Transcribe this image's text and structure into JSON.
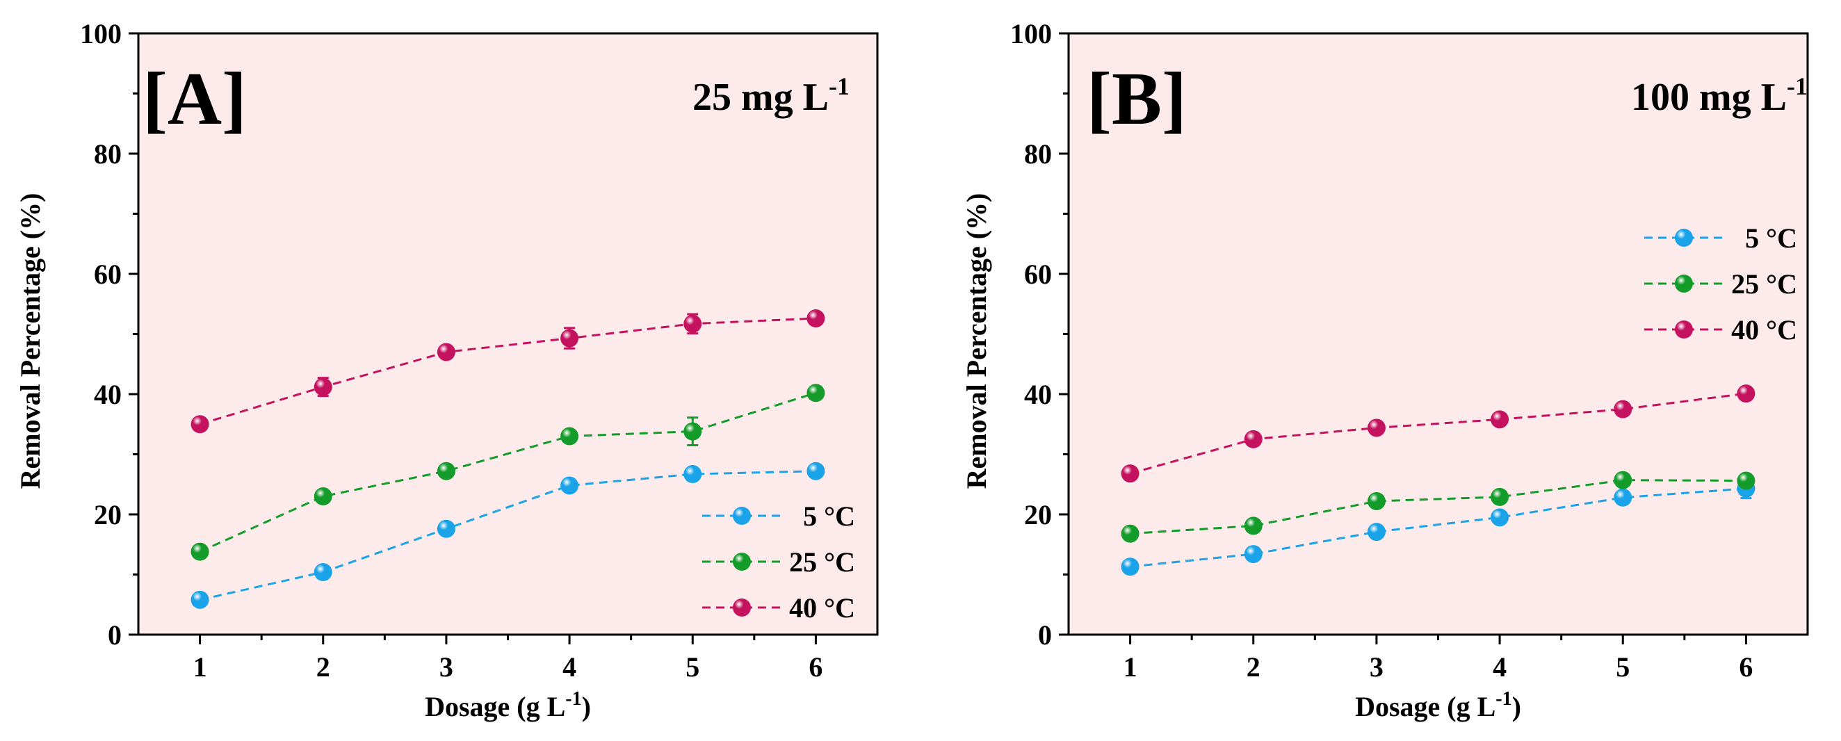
{
  "chart_data": [
    {
      "type": "line",
      "panel_label": "[A]",
      "concentration": {
        "main": "25 mg L",
        "sup": "-1"
      },
      "xlabel": {
        "main": "Dosage (g L",
        "sup": "-1",
        "tail": ")"
      },
      "ylabel": "Removal Percentage (%)",
      "x": [
        1,
        2,
        3,
        4,
        5,
        6
      ],
      "xlim": [
        0.5,
        6.5
      ],
      "ylim": [
        0,
        100
      ],
      "xticks": [
        "1",
        "2",
        "3",
        "4",
        "5",
        "6"
      ],
      "yticks": [
        "0",
        "20",
        "40",
        "60",
        "80",
        "100"
      ],
      "legend_position": "bottom-right",
      "series": [
        {
          "name": "5 °C",
          "color": "#1aa3e8",
          "values": [
            5.8,
            10.4,
            17.6,
            24.8,
            26.7,
            27.2
          ],
          "errors": [
            0.5,
            0.6,
            0.7,
            0.7,
            0.6,
            0.6
          ]
        },
        {
          "name": "25 °C",
          "color": "#149c2a",
          "values": [
            13.8,
            23.0,
            27.2,
            33.0,
            33.8,
            40.2
          ],
          "errors": [
            0.6,
            0.6,
            0.7,
            0.7,
            2.3,
            0.8
          ]
        },
        {
          "name": "40 °C",
          "color": "#c4125e",
          "values": [
            35.0,
            41.2,
            47.0,
            49.3,
            51.7,
            52.6
          ],
          "errors": [
            0.7,
            1.5,
            0.6,
            1.7,
            1.6,
            0.6
          ]
        }
      ]
    },
    {
      "type": "line",
      "panel_label": "[B]",
      "concentration": {
        "main": "100 mg L",
        "sup": "-1"
      },
      "xlabel": {
        "main": "Dosage (g L",
        "sup": "-1",
        "tail": ")"
      },
      "ylabel": "Removal Percentage (%)",
      "x": [
        1,
        2,
        3,
        4,
        5,
        6
      ],
      "xlim": [
        0.5,
        6.5
      ],
      "ylim": [
        0,
        100
      ],
      "xticks": [
        "1",
        "2",
        "3",
        "4",
        "5",
        "6"
      ],
      "yticks": [
        "0",
        "20",
        "40",
        "60",
        "80",
        "100"
      ],
      "legend_position": "middle-right",
      "series": [
        {
          "name": "5 °C",
          "color": "#1aa3e8",
          "values": [
            11.3,
            13.4,
            17.1,
            19.5,
            22.8,
            24.3
          ],
          "errors": [
            0.6,
            0.6,
            0.6,
            0.6,
            0.7,
            1.6
          ]
        },
        {
          "name": "25 °C",
          "color": "#149c2a",
          "values": [
            16.8,
            18.1,
            22.2,
            22.9,
            25.7,
            25.6
          ],
          "errors": [
            0.6,
            0.6,
            0.7,
            0.6,
            0.6,
            0.6
          ]
        },
        {
          "name": "40 °C",
          "color": "#c4125e",
          "values": [
            26.8,
            32.5,
            34.4,
            35.8,
            37.5,
            40.1
          ],
          "errors": [
            0.6,
            0.6,
            0.6,
            0.6,
            0.6,
            0.6
          ]
        }
      ]
    }
  ]
}
